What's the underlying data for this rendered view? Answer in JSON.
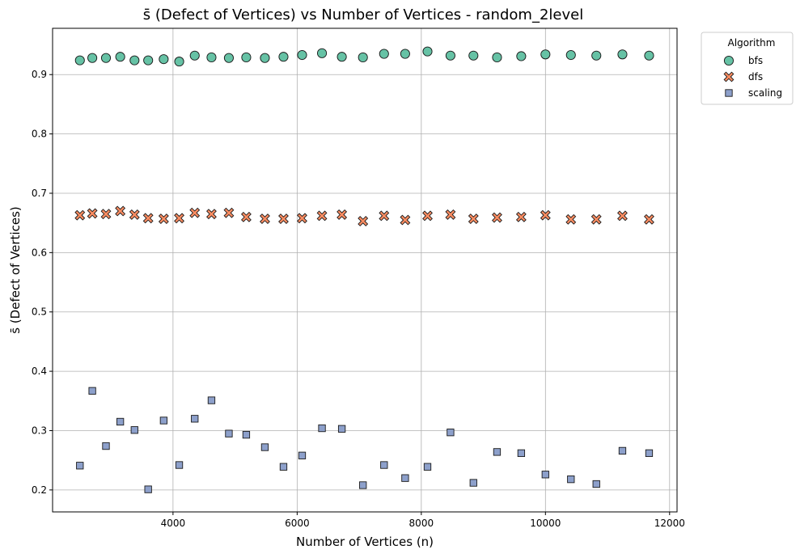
{
  "chart_data": {
    "type": "scatter",
    "title": "s̄ (Defect of Vertices) vs Number of Vertices - random_2level",
    "xlabel": "Number of Vertices (n)",
    "ylabel": "s̄ (Defect of Vertices)",
    "xlim": [
      2060,
      12120
    ],
    "ylim": [
      0.163,
      0.978
    ],
    "xticks": [
      4000,
      6000,
      8000,
      10000,
      12000
    ],
    "yticks": [
      0.2,
      0.3,
      0.4,
      0.5,
      0.6,
      0.7,
      0.8,
      0.9
    ],
    "grid": true,
    "legend": {
      "title": "Algorithm",
      "placement": "outside-top-right"
    },
    "x": [
      2500,
      2700,
      2920,
      3150,
      3380,
      3600,
      3850,
      4100,
      4350,
      4620,
      4900,
      5180,
      5480,
      5780,
      6080,
      6400,
      6720,
      7060,
      7400,
      7740,
      8100,
      8470,
      8840,
      9220,
      9610,
      10000,
      10410,
      10820,
      11240,
      11670
    ],
    "series": [
      {
        "name": "bfs",
        "marker": "circle",
        "color": "#66c2a5",
        "values": [
          0.924,
          0.928,
          0.928,
          0.93,
          0.924,
          0.924,
          0.926,
          0.922,
          0.932,
          0.929,
          0.928,
          0.929,
          0.928,
          0.93,
          0.933,
          0.936,
          0.93,
          0.929,
          0.935,
          0.935,
          0.939,
          0.932,
          0.932,
          0.929,
          0.931,
          0.934,
          0.933,
          0.932,
          0.934,
          0.932
        ]
      },
      {
        "name": "dfs",
        "marker": "x",
        "color": "#fc8d62",
        "values": [
          0.663,
          0.666,
          0.665,
          0.67,
          0.664,
          0.658,
          0.657,
          0.658,
          0.667,
          0.665,
          0.667,
          0.66,
          0.657,
          0.657,
          0.658,
          0.662,
          0.664,
          0.653,
          0.662,
          0.655,
          0.662,
          0.664,
          0.657,
          0.659,
          0.66,
          0.663,
          0.656,
          0.656,
          0.662,
          0.656
        ]
      },
      {
        "name": "scaling",
        "marker": "square",
        "color": "#8da0cb",
        "values": [
          0.241,
          0.367,
          0.274,
          0.315,
          0.301,
          0.201,
          0.317,
          0.242,
          0.32,
          0.351,
          0.295,
          0.293,
          0.272,
          0.239,
          0.258,
          0.304,
          0.303,
          0.208,
          0.242,
          0.22,
          0.239,
          0.297,
          0.212,
          0.264,
          0.262,
          0.226,
          0.218,
          0.21,
          0.266,
          0.262
        ]
      }
    ]
  }
}
